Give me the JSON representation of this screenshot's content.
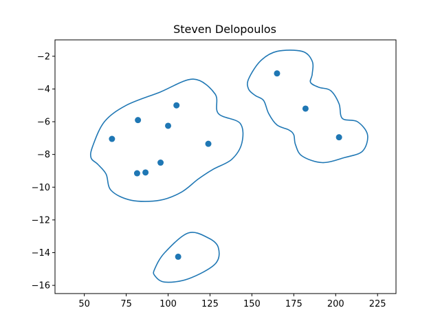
{
  "chart_data": {
    "type": "scatter",
    "title": "Steven Delopoulos",
    "xlabel": "",
    "ylabel": "",
    "xlim": [
      32.5,
      236
    ],
    "ylim": [
      -16.5,
      -1
    ],
    "x_ticks": [
      50,
      75,
      100,
      125,
      150,
      175,
      200,
      225
    ],
    "y_ticks": [
      -16,
      -14,
      -12,
      -10,
      -8,
      -6,
      -4,
      -2
    ],
    "grid": false,
    "color": "#1f77b4",
    "series": [
      {
        "values": [
          [
            66.5,
            -7.05
          ],
          [
            82.0,
            -5.9
          ],
          [
            81.5,
            -9.15
          ],
          [
            86.5,
            -9.1
          ],
          [
            95.5,
            -8.5
          ],
          [
            100.0,
            -6.25
          ],
          [
            105.0,
            -5.0
          ],
          [
            124.0,
            -7.35
          ],
          [
            106.0,
            -14.25
          ],
          [
            165.0,
            -3.05
          ],
          [
            182.0,
            -5.2
          ],
          [
            202.0,
            -6.95
          ]
        ]
      }
    ],
    "contours": [
      [
        [
          55,
          -7.5
        ],
        [
          62,
          -6
        ],
        [
          75,
          -5
        ],
        [
          95,
          -4.2
        ],
        [
          115,
          -3.4
        ],
        [
          128,
          -4.3
        ],
        [
          130,
          -5.5
        ],
        [
          143,
          -6.1
        ],
        [
          144,
          -7.3
        ],
        [
          138,
          -8.3
        ],
        [
          127,
          -8.9
        ],
        [
          118,
          -9.5
        ],
        [
          108,
          -10.3
        ],
        [
          95,
          -10.8
        ],
        [
          78,
          -10.8
        ],
        [
          66,
          -10.2
        ],
        [
          63,
          -9.2
        ],
        [
          58,
          -8.6
        ],
        [
          54,
          -8.2
        ]
      ],
      [
        [
          92,
          -15
        ],
        [
          98,
          -14
        ],
        [
          112,
          -12.8
        ],
        [
          124,
          -13.1
        ],
        [
          130,
          -13.7
        ],
        [
          128,
          -14.7
        ],
        [
          112,
          -15.6
        ],
        [
          98,
          -15.8
        ],
        [
          92,
          -15.4
        ]
      ],
      [
        [
          148,
          -3.4
        ],
        [
          155,
          -2.3
        ],
        [
          165,
          -1.7
        ],
        [
          180,
          -1.7
        ],
        [
          186,
          -2.3
        ],
        [
          186,
          -3.1
        ],
        [
          185,
          -3.6
        ],
        [
          190,
          -3.9
        ],
        [
          197,
          -4.1
        ],
        [
          202,
          -4.9
        ],
        [
          204,
          -5.8
        ],
        [
          213,
          -6
        ],
        [
          219,
          -6.8
        ],
        [
          216,
          -7.8
        ],
        [
          205,
          -8.2
        ],
        [
          192,
          -8.5
        ],
        [
          180,
          -8.1
        ],
        [
          176,
          -7.4
        ],
        [
          175,
          -6.8
        ],
        [
          172,
          -6.5
        ],
        [
          165,
          -6.2
        ],
        [
          160,
          -5.5
        ],
        [
          157,
          -4.7
        ],
        [
          152,
          -4.4
        ],
        [
          148,
          -4
        ]
      ]
    ]
  }
}
